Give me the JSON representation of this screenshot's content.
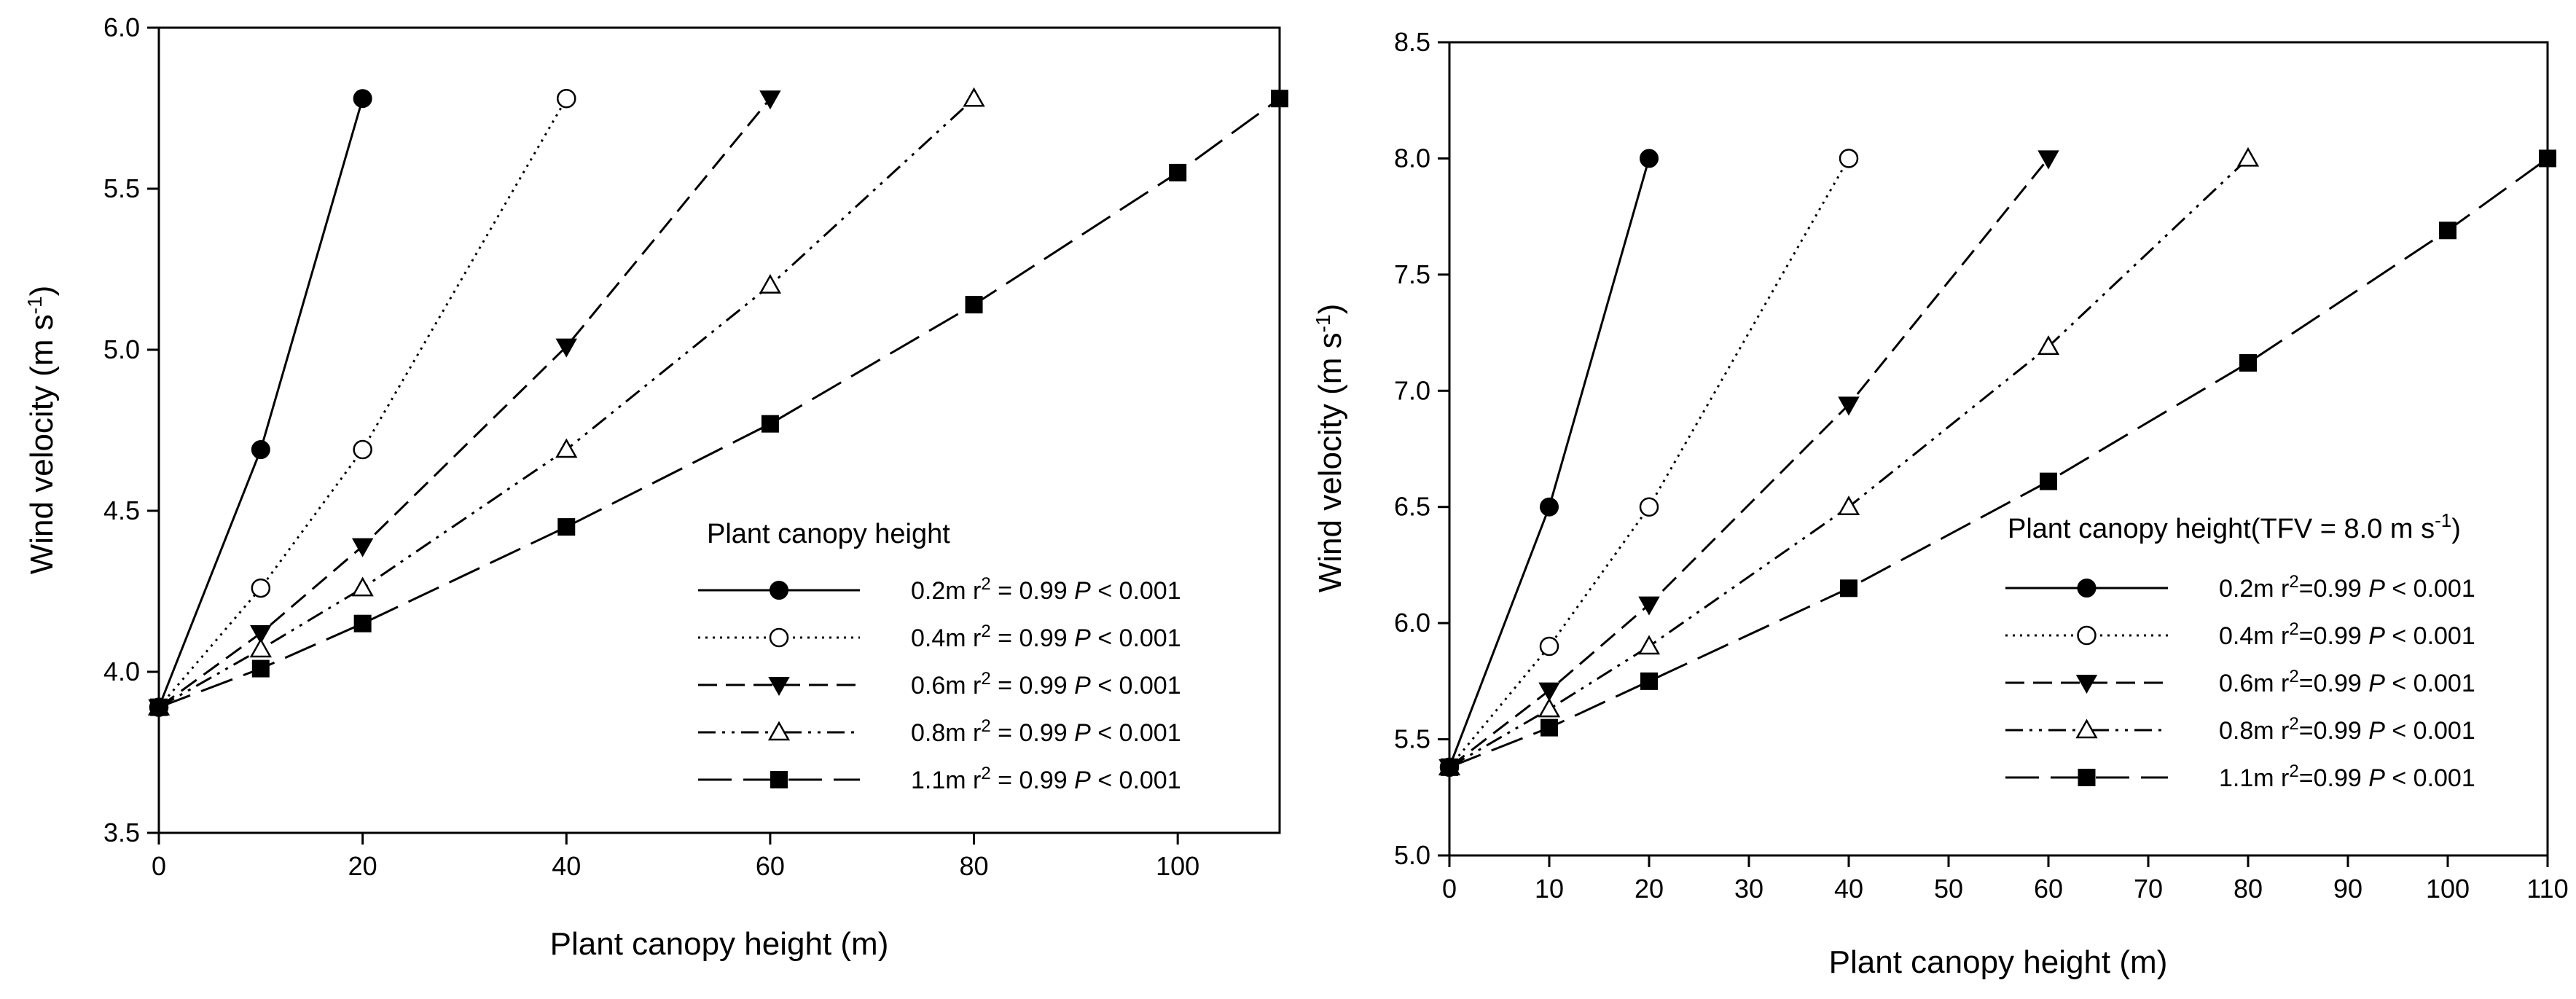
{
  "chart_data": [
    {
      "type": "line",
      "xlabel": "Plant canopy height (m)",
      "ylabel": "Wind velocity (m s",
      "ylabel_sup": "-1",
      "ylabel_close": ")",
      "xlim": [
        0,
        110
      ],
      "ylim": [
        3.5,
        6.0
      ],
      "xticks": [
        0,
        20,
        40,
        60,
        80,
        100
      ],
      "xtick_labels": [
        "0",
        "20",
        "40",
        "60",
        "80",
        "100"
      ],
      "yticks": [
        3.5,
        4.0,
        4.5,
        5.0,
        5.5,
        6.0
      ],
      "ytick_labels": [
        "3.5",
        "4.0",
        "4.5",
        "5.0",
        "5.5",
        "6.0"
      ],
      "legend_title": "Plant canopy height",
      "legend_location": "lower-right",
      "series": [
        {
          "name": "0.2m",
          "r2_label": "r",
          "r2_value": " = 0.99 ",
          "p_label": "P",
          "p_value": " < 0.001",
          "marker": "filled-circle",
          "dash": "solid",
          "x": [
            0,
            10,
            20
          ],
          "y": [
            3.89,
            4.69,
            5.78
          ]
        },
        {
          "name": "0.4m",
          "r2_label": "r",
          "r2_value": " = 0.99 ",
          "p_label": "P",
          "p_value": " < 0.001",
          "marker": "open-circle",
          "dash": "dotted",
          "x": [
            0,
            10,
            20,
            40
          ],
          "y": [
            3.89,
            4.26,
            4.69,
            5.78
          ]
        },
        {
          "name": "0.6m",
          "r2_label": "r",
          "r2_value": " = 0.99 ",
          "p_label": "P",
          "p_value": " < 0.001",
          "marker": "filled-triangle-down",
          "dash": "dashed",
          "x": [
            0,
            10,
            20,
            40,
            60
          ],
          "y": [
            3.89,
            4.12,
            4.39,
            5.01,
            5.78
          ]
        },
        {
          "name": "0.8m",
          "r2_label": "r",
          "r2_value": " = 0.99 ",
          "p_label": "P",
          "p_value": " < 0.001",
          "marker": "open-triangle-up",
          "dash": "dash-dot-dot",
          "x": [
            0,
            10,
            20,
            40,
            60,
            80
          ],
          "y": [
            3.89,
            4.07,
            4.26,
            4.69,
            5.2,
            5.78
          ]
        },
        {
          "name": "1.1m",
          "r2_label": "r",
          "r2_value": " = 0.99 ",
          "p_label": "P",
          "p_value": " < 0.001",
          "marker": "filled-square",
          "dash": "long-dash",
          "x": [
            0,
            10,
            20,
            40,
            60,
            80,
            100,
            110
          ],
          "y": [
            3.89,
            4.01,
            4.15,
            4.45,
            4.77,
            5.14,
            5.55,
            5.78
          ]
        }
      ]
    },
    {
      "type": "line",
      "xlabel": "Plant canopy height (m)",
      "ylabel": "Wind velocity (m s",
      "ylabel_sup": "-1",
      "ylabel_close": ")",
      "xlim": [
        0,
        110
      ],
      "ylim": [
        5.0,
        8.5
      ],
      "xticks": [
        0,
        10,
        20,
        30,
        40,
        50,
        60,
        70,
        80,
        90,
        100,
        110
      ],
      "xtick_labels": [
        "0",
        "10",
        "20",
        "30",
        "40",
        "50",
        "60",
        "70",
        "80",
        "90",
        "100",
        "110"
      ],
      "yticks": [
        5.0,
        5.5,
        6.0,
        6.5,
        7.0,
        7.5,
        8.0,
        8.5
      ],
      "ytick_labels": [
        "5.0",
        "5.5",
        "6.0",
        "6.5",
        "7.0",
        "7.5",
        "8.0",
        "8.5"
      ],
      "legend_title": "Plant canopy height(TFV = 8.0 m s",
      "legend_title_sup": "-1",
      "legend_title_close": ")",
      "legend_location": "lower-right",
      "series": [
        {
          "name": "0.2m",
          "r2_label": "r",
          "r2_value": "=0.99 ",
          "p_label": "P",
          "p_value": " < 0.001",
          "marker": "filled-circle",
          "dash": "solid",
          "x": [
            0,
            10,
            20
          ],
          "y": [
            5.38,
            6.5,
            8.0
          ]
        },
        {
          "name": "0.4m",
          "r2_label": "r",
          "r2_value": "=0.99 ",
          "p_label": "P",
          "p_value": " < 0.001",
          "marker": "open-circle",
          "dash": "dotted",
          "x": [
            0,
            10,
            20,
            40
          ],
          "y": [
            5.38,
            5.9,
            6.5,
            8.0
          ]
        },
        {
          "name": "0.6m",
          "r2_label": "r",
          "r2_value": "=0.99 ",
          "p_label": "P",
          "p_value": " < 0.001",
          "marker": "filled-triangle-down",
          "dash": "dashed",
          "x": [
            0,
            10,
            20,
            40,
            60
          ],
          "y": [
            5.38,
            5.71,
            6.08,
            6.94,
            8.0
          ]
        },
        {
          "name": "0.8m",
          "r2_label": "r",
          "r2_value": "=0.99 ",
          "p_label": "P",
          "p_value": " < 0.001",
          "marker": "open-triangle-up",
          "dash": "dash-dot-dot",
          "x": [
            0,
            10,
            20,
            40,
            60,
            80
          ],
          "y": [
            5.38,
            5.63,
            5.9,
            6.5,
            7.19,
            8.0
          ]
        },
        {
          "name": "1.1m",
          "r2_label": "r",
          "r2_value": "=0.99 ",
          "p_label": "P",
          "p_value": " < 0.001",
          "marker": "filled-square",
          "dash": "long-dash",
          "x": [
            0,
            10,
            20,
            40,
            60,
            80,
            100,
            110
          ],
          "y": [
            5.38,
            5.55,
            5.75,
            6.15,
            6.61,
            7.12,
            7.69,
            8.0
          ]
        }
      ]
    }
  ]
}
